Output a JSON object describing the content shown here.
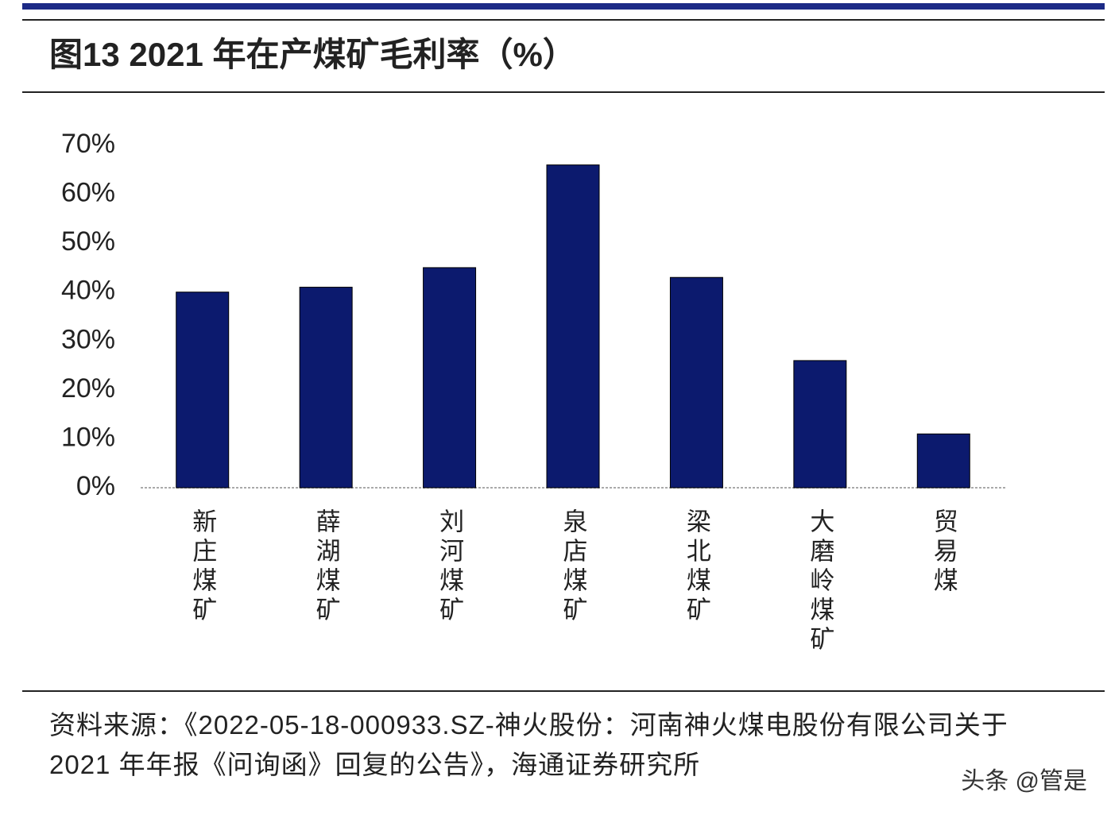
{
  "chart_data": {
    "type": "bar",
    "title": "图13 2021 年在产煤矿毛利率（%）",
    "categories": [
      "新庄煤矿",
      "薛湖煤矿",
      "刘河煤矿",
      "泉店煤矿",
      "梁北煤矿",
      "大磨岭煤矿",
      "贸易煤"
    ],
    "values": [
      40,
      41,
      45,
      66,
      43,
      26,
      11
    ],
    "color": "#0c1a6e",
    "ylim": [
      0,
      70
    ],
    "yticks": [
      {
        "value": 0,
        "label": "0%"
      },
      {
        "value": 10,
        "label": "10%"
      },
      {
        "value": 20,
        "label": "20%"
      },
      {
        "value": 30,
        "label": "30%"
      },
      {
        "value": 40,
        "label": "40%"
      },
      {
        "value": 50,
        "label": "50%"
      },
      {
        "value": 60,
        "label": "60%"
      },
      {
        "value": 70,
        "label": "70%"
      }
    ],
    "grid": false,
    "source": "资料来源：《2022-05-18-000933.SZ-神火股份：河南神火煤电股份有限公司关于 2021 年年报《问询函》回复的公告》，海通证券研究所",
    "watermark": "头条 @管是"
  }
}
